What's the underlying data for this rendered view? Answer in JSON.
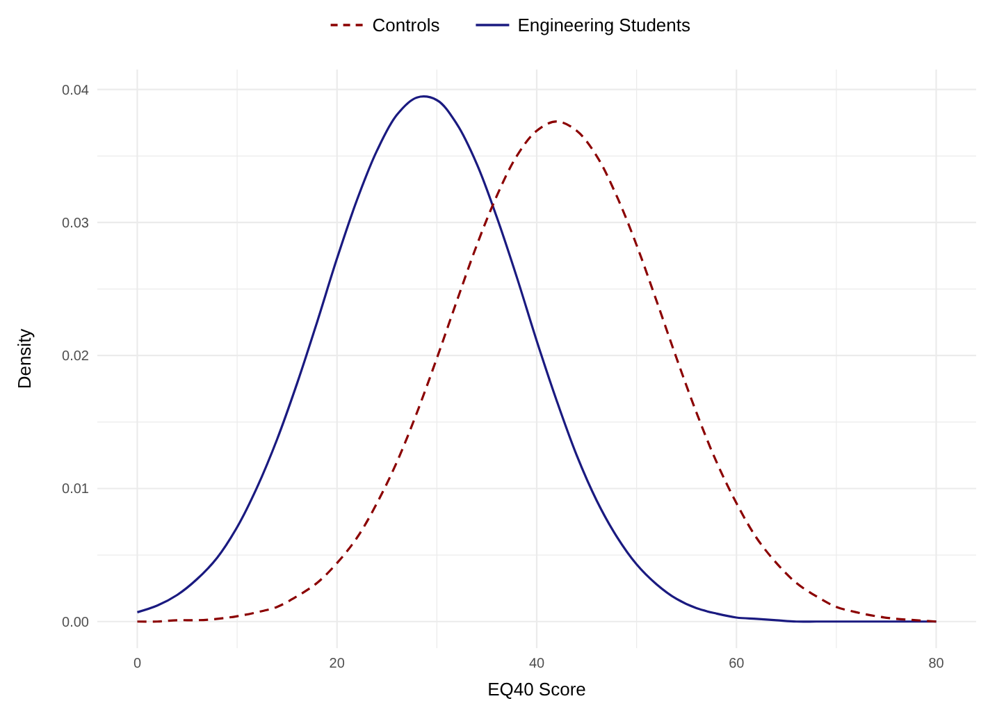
{
  "chart_data": {
    "type": "line",
    "xlabel": "EQ40 Score",
    "ylabel": "Density",
    "legend": "top",
    "grid": true,
    "xlim": [
      -4,
      84
    ],
    "xticks": [
      0,
      {
        "value": 10,
        "label": null
      },
      20,
      {
        "value": 30,
        "label": null
      },
      40,
      {
        "value": 50,
        "label": null
      },
      60,
      {
        "value": 70,
        "label": null
      },
      80
    ],
    "ylim": [
      -0.002,
      0.0415
    ],
    "yticks": [
      {
        "value": 0,
        "label": "0.00"
      },
      {
        "value": 0.005,
        "label": null
      },
      {
        "value": 0.01,
        "label": "0.01"
      },
      {
        "value": 0.015,
        "label": null
      },
      {
        "value": 0.02,
        "label": "0.02"
      },
      {
        "value": 0.025,
        "label": null
      },
      {
        "value": 0.03,
        "label": "0.03"
      },
      {
        "value": 0.035,
        "label": null
      },
      {
        "value": 0.04,
        "label": "0.04"
      }
    ],
    "x": [
      0,
      2,
      4,
      6,
      8,
      10,
      12,
      14,
      16,
      18,
      20,
      22,
      24,
      26,
      28,
      30,
      32,
      34,
      36,
      38,
      40,
      42,
      44,
      46,
      48,
      50,
      52,
      54,
      56,
      58,
      60,
      62,
      64,
      66,
      68,
      70,
      72,
      74,
      76,
      78,
      80
    ],
    "series": [
      {
        "name": "Controls",
        "color": "#8b0000",
        "line_style": "dashed",
        "values": [
          0,
          0,
          0.0001,
          0.0001,
          0.0002,
          0.0004,
          0.0007,
          0.0011,
          0.0019,
          0.0029,
          0.0044,
          0.0063,
          0.0089,
          0.012,
          0.0157,
          0.0198,
          0.0241,
          0.0283,
          0.032,
          0.035,
          0.0369,
          0.0376,
          0.0369,
          0.035,
          0.032,
          0.0283,
          0.0241,
          0.0198,
          0.0157,
          0.012,
          0.0089,
          0.0063,
          0.0044,
          0.0029,
          0.0019,
          0.0011,
          0.0007,
          0.0004,
          0.0002,
          0.0001,
          0
        ]
      },
      {
        "name": "Engineering Students",
        "color": "#1a1a80",
        "line_style": "solid",
        "values": [
          0.0007,
          0.0012,
          0.002,
          0.0032,
          0.0048,
          0.0071,
          0.0101,
          0.0137,
          0.0179,
          0.0225,
          0.0273,
          0.0317,
          0.0354,
          0.0381,
          0.0394,
          0.0392,
          0.0374,
          0.0344,
          0.0304,
          0.0259,
          0.0211,
          0.0166,
          0.0125,
          0.0091,
          0.0064,
          0.0043,
          0.0028,
          0.0017,
          0.001,
          0.0006,
          0.0003,
          0.0002,
          0.0001,
          0,
          0,
          0,
          0,
          0,
          0,
          0,
          0
        ]
      }
    ]
  }
}
